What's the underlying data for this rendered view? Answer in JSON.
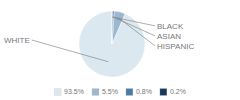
{
  "chart_data": {
    "type": "pie",
    "categories": [
      "WHITE",
      "HISPANIC",
      "ASIAN",
      "BLACK"
    ],
    "values": [
      93.5,
      5.5,
      0.8,
      0.2
    ],
    "value_labels": [
      "93.5%",
      "5.5%",
      "0.8%",
      "0.2%"
    ],
    "colors": [
      "#dce8f0",
      "#9ab8d0",
      "#4e7aa8",
      "#1a3a5c"
    ],
    "legend": "bottom"
  }
}
